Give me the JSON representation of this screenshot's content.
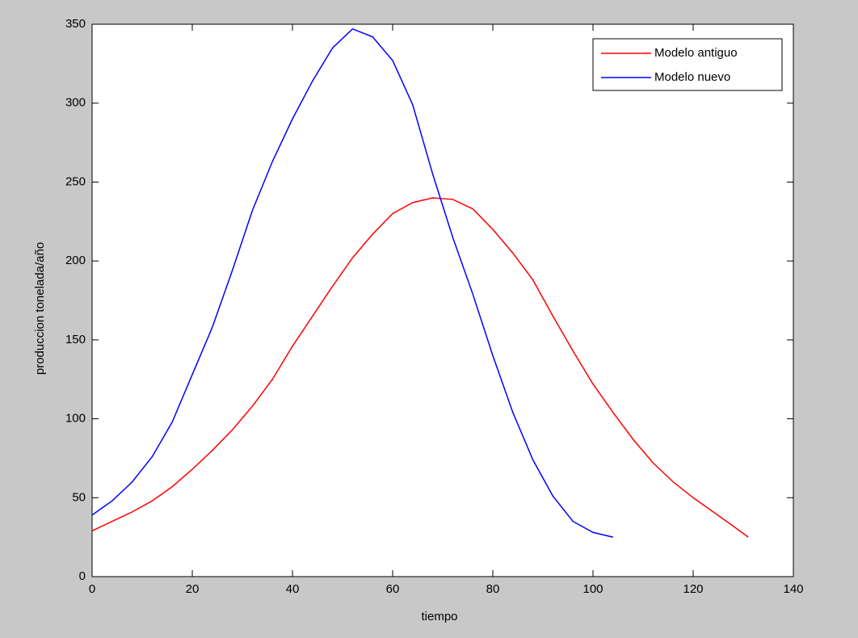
{
  "chart_data": {
    "type": "line",
    "xlabel": "tiempo",
    "ylabel": "produccion tonelada/año",
    "xlim": [
      0,
      140
    ],
    "ylim": [
      0,
      350
    ],
    "xticks": [
      0,
      20,
      40,
      60,
      80,
      100,
      120,
      140
    ],
    "yticks": [
      0,
      50,
      100,
      150,
      200,
      250,
      300,
      350
    ],
    "grid": false,
    "legend": "top-right",
    "series": [
      {
        "name": "Modelo antiguo",
        "color": "#ff0000",
        "x": [
          0,
          4,
          8,
          12,
          16,
          20,
          24,
          28,
          32,
          36,
          40,
          44,
          48,
          52,
          56,
          60,
          64,
          68,
          72,
          76,
          80,
          84,
          88,
          92,
          96,
          100,
          104,
          108,
          112,
          116,
          120,
          124,
          128,
          131
        ],
        "values": [
          29,
          35,
          41,
          48,
          57,
          68,
          80,
          93,
          108,
          125,
          146,
          165,
          184,
          202,
          217,
          230,
          237,
          240,
          239,
          233,
          220,
          205,
          188,
          165,
          143,
          122,
          104,
          87,
          72,
          60,
          50,
          41,
          32,
          25
        ]
      },
      {
        "name": "Modelo nuevo",
        "color": "#0000ff",
        "x": [
          0,
          4,
          8,
          12,
          16,
          20,
          24,
          28,
          32,
          36,
          40,
          44,
          48,
          52,
          56,
          60,
          64,
          68,
          72,
          76,
          80,
          84,
          88,
          92,
          96,
          100,
          104
        ],
        "values": [
          39,
          48,
          60,
          76,
          98,
          128,
          158,
          194,
          232,
          263,
          290,
          314,
          335,
          347,
          342,
          327,
          299,
          255,
          215,
          179,
          140,
          104,
          74,
          51,
          35,
          28,
          25
        ]
      }
    ]
  }
}
